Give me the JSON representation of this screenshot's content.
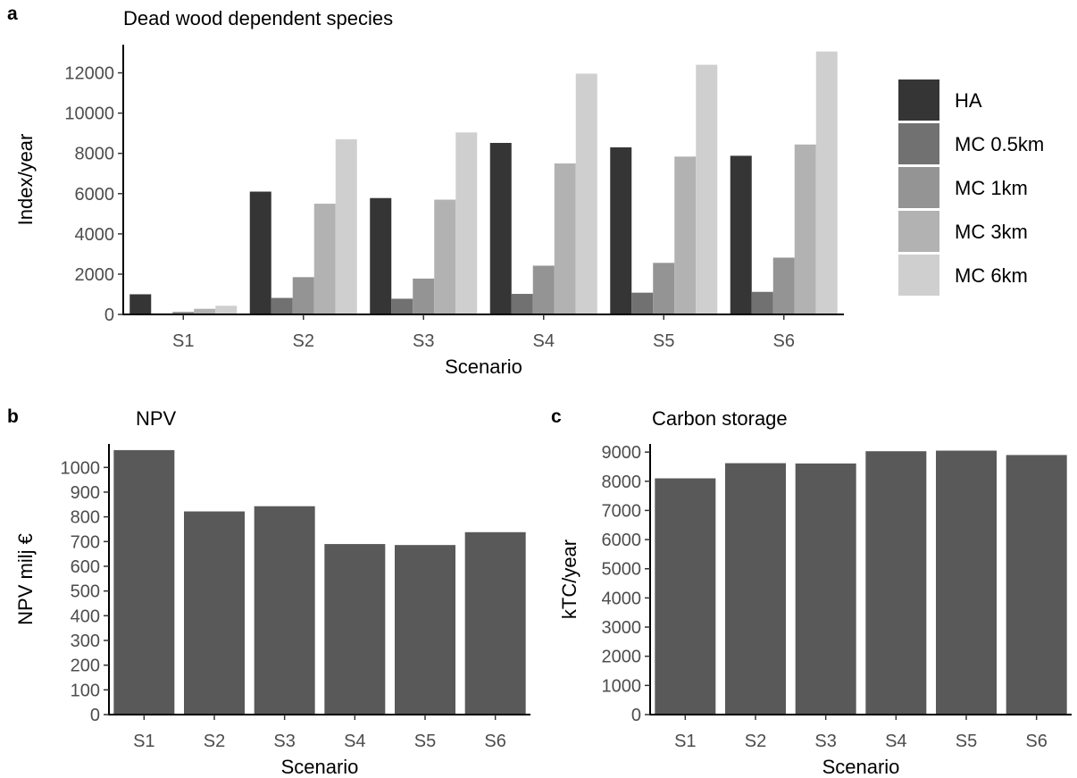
{
  "chart_data": [
    {
      "panel": "a",
      "type": "bar",
      "title": "Dead wood dependent species",
      "xlabel": "Scenario",
      "ylabel": "Index/year",
      "categories": [
        "S1",
        "S2",
        "S3",
        "S4",
        "S5",
        "S6"
      ],
      "ylim": [
        0,
        13400
      ],
      "yticks": [
        0,
        2000,
        4000,
        6000,
        8000,
        10000,
        12000
      ],
      "legend_position": "right",
      "series": [
        {
          "name": "HA",
          "color": "#353535",
          "values": [
            1000,
            6100,
            5780,
            8520,
            8300,
            7880
          ]
        },
        {
          "name": "MC 0.5km",
          "color": "#717171",
          "values": [
            50,
            820,
            780,
            1020,
            1080,
            1120
          ]
        },
        {
          "name": "MC 1km",
          "color": "#949494",
          "values": [
            130,
            1850,
            1780,
            2420,
            2560,
            2820
          ]
        },
        {
          "name": "MC 3km",
          "color": "#b2b2b2",
          "values": [
            280,
            5500,
            5700,
            7500,
            7840,
            8440
          ]
        },
        {
          "name": "MC 6km",
          "color": "#cfcfcf",
          "values": [
            430,
            8700,
            9040,
            11960,
            12400,
            13060
          ]
        }
      ]
    },
    {
      "panel": "b",
      "type": "bar",
      "title": "NPV",
      "xlabel": "Scenario",
      "ylabel": "NPV milj €",
      "categories": [
        "S1",
        "S2",
        "S3",
        "S4",
        "S5",
        "S6"
      ],
      "values": [
        1070,
        822,
        843,
        690,
        686,
        738
      ],
      "color": "#595959",
      "ylim": [
        0,
        1095
      ],
      "yticks": [
        0,
        100,
        200,
        300,
        400,
        500,
        600,
        700,
        800,
        900,
        1000
      ]
    },
    {
      "panel": "c",
      "type": "bar",
      "title": "Carbon storage",
      "xlabel": "Scenario",
      "ylabel": "kTC/year",
      "categories": [
        "S1",
        "S2",
        "S3",
        "S4",
        "S5",
        "S6"
      ],
      "values": [
        8100,
        8620,
        8610,
        9030,
        9050,
        8900
      ],
      "color": "#595959",
      "ylim": [
        0,
        9280
      ],
      "yticks": [
        0,
        1000,
        2000,
        3000,
        4000,
        5000,
        6000,
        7000,
        8000,
        9000
      ]
    }
  ]
}
